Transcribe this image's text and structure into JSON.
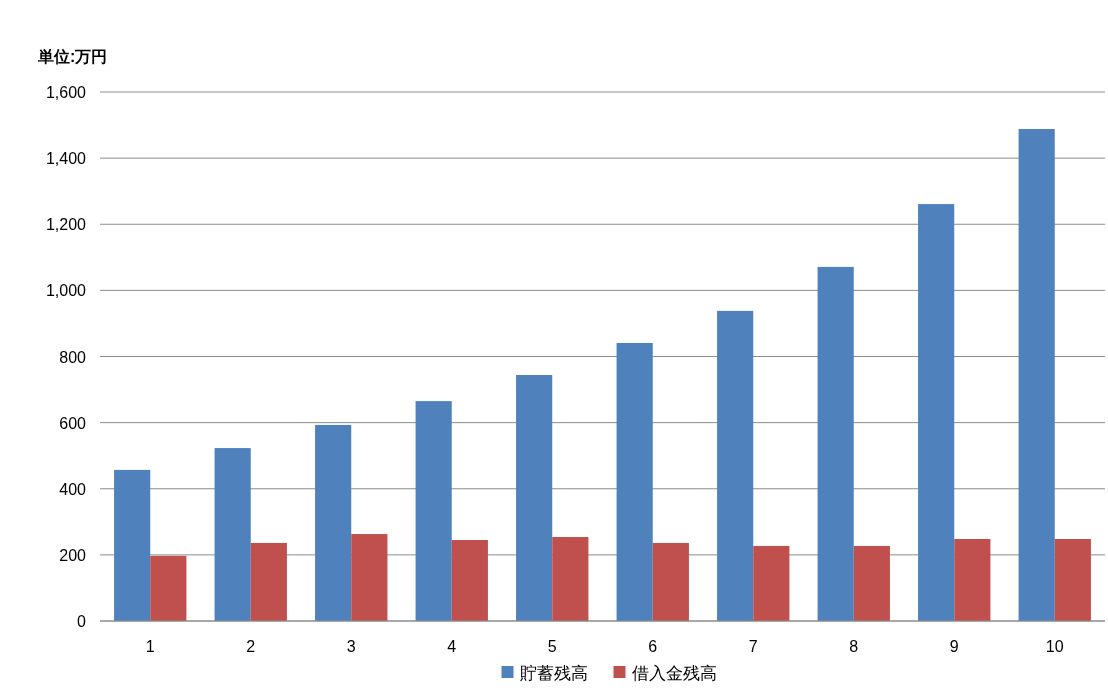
{
  "chart_data": {
    "type": "bar",
    "annotations": [
      "単位:万円"
    ],
    "categories": [
      "1",
      "2",
      "3",
      "4",
      "5",
      "6",
      "7",
      "8",
      "9",
      "10"
    ],
    "series": [
      {
        "name": "貯蓄残高",
        "color": "#4f81bd",
        "values": [
          457,
          523,
          593,
          665,
          744,
          841,
          938,
          1071,
          1261,
          1488
        ]
      },
      {
        "name": "借入金残高",
        "color": "#c0504d",
        "values": [
          197,
          236,
          263,
          245,
          254,
          236,
          227,
          227,
          248,
          248
        ]
      }
    ],
    "ylim": [
      0,
      1600
    ],
    "yticks": [
      0,
      200,
      400,
      600,
      800,
      {
        "value": 1000,
        "label": "1,000"
      },
      {
        "value": 1200,
        "label": "1,200"
      },
      {
        "value": 1400,
        "label": "1,400"
      },
      {
        "value": 1600,
        "label": "1,600"
      }
    ],
    "grid": "y",
    "legend": "bottom"
  }
}
